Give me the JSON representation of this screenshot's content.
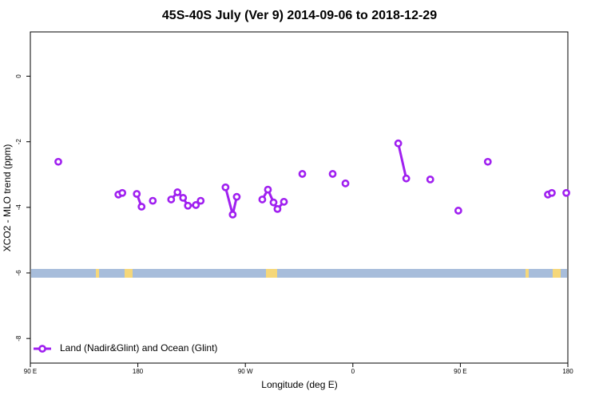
{
  "chart_data": {
    "type": "line",
    "title": "45S-40S July (Ver 9)   2014-09-06 to 2018-12-29",
    "x_label": "Longitude (deg E)",
    "y_label": "XCO2 - MLO trend (ppm)",
    "xlim": [
      90,
      540
    ],
    "xticks": [
      {
        "value": 90,
        "label": "90 E"
      },
      180,
      {
        "value": 270,
        "label": "90 W"
      },
      {
        "value": 360,
        "label": "0"
      },
      {
        "value": 450,
        "label": "90 E"
      },
      {
        "value": 540,
        "label": "180"
      }
    ],
    "ylim": [
      -8.75,
      1.35
    ],
    "yticks": [
      0,
      -2,
      -4,
      -6,
      -8
    ],
    "legend": "bottom-left",
    "series": [
      {
        "name": "Land (Nadir&Glint) and Ocean (Glint)",
        "color": "#a020f0",
        "x": [
          113.4,
          null,
          163.7,
          167.0,
          null,
          179.1,
          183.1,
          null,
          192.5,
          null,
          207.9,
          213.2,
          217.9,
          221.9,
          228.6,
          232.6,
          null,
          253.4,
          259.4,
          262.8,
          null,
          284.2,
          288.9,
          293.6,
          296.9,
          302.3,
          null,
          317.7,
          null,
          343.1,
          null,
          353.8,
          null,
          398.0,
          404.7,
          null,
          424.8,
          null,
          448.3,
          null,
          473.0,
          null,
          523.3,
          526.6,
          null,
          538.7
        ],
        "values": [
          -2.61,
          null,
          -3.61,
          -3.56,
          null,
          -3.59,
          -3.98,
          null,
          -3.8,
          null,
          -3.76,
          -3.54,
          -3.71,
          -3.95,
          -3.93,
          -3.8,
          null,
          -3.39,
          -4.22,
          -3.68,
          null,
          -3.76,
          -3.46,
          -3.85,
          -4.05,
          -3.83,
          null,
          -2.98,
          null,
          -2.98,
          null,
          -3.27,
          null,
          -2.05,
          -3.12,
          null,
          -3.15,
          null,
          -4.1,
          null,
          -2.61,
          null,
          -3.61,
          -3.56,
          null,
          -3.56
        ]
      }
    ]
  }
}
